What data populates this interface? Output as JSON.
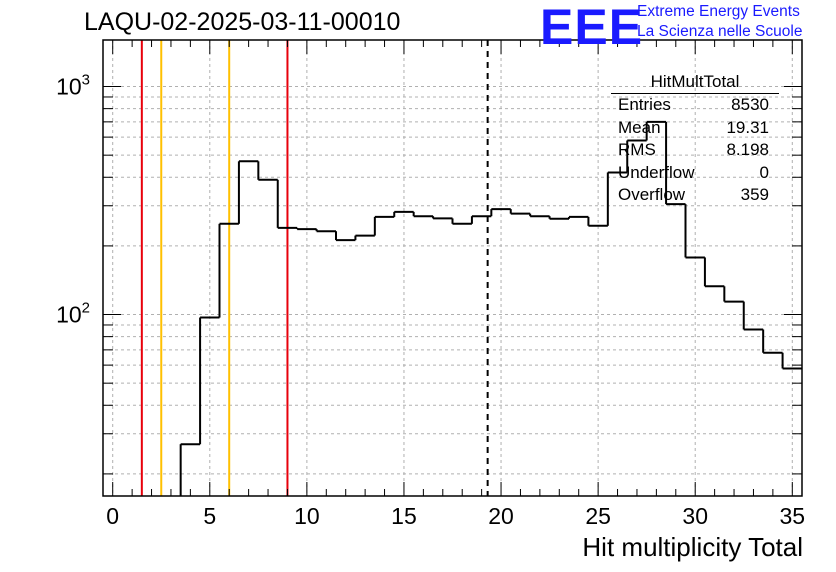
{
  "header": {
    "title": "LAQU-02-2025-03-11-00010",
    "logo": {
      "mark": "EEE",
      "line1": "Extreme Energy Events",
      "line2": "La Scienza nelle Scuole",
      "color": "#1a1aff"
    }
  },
  "stats_box": {
    "title": "HitMultTotal",
    "rows": [
      {
        "label": "Entries",
        "value": "8530"
      },
      {
        "label": "Mean",
        "value": "19.31"
      },
      {
        "label": "RMS",
        "value": "8.198"
      },
      {
        "label": "Underflow",
        "value": "0"
      },
      {
        "label": "Overflow",
        "value": "359"
      }
    ]
  },
  "chart_data": {
    "type": "histogram",
    "xlabel": "Hit multiplicity Total",
    "ylabel": "",
    "xlim": [
      -0.5,
      35.5
    ],
    "ylim": [
      16,
      1600
    ],
    "yscale": "log",
    "grid": true,
    "x_ticks": [
      "0",
      "5",
      "10",
      "15",
      "20",
      "25",
      "30",
      "35"
    ],
    "y_ticks": [
      {
        "base": "10",
        "exp": "2",
        "value": 100
      },
      {
        "base": "10",
        "exp": "3",
        "value": 1000
      }
    ],
    "bin_edges_start": -0.5,
    "bin_width": 1,
    "counts": [
      0,
      0,
      0,
      0,
      27,
      97,
      250,
      470,
      390,
      240,
      237,
      232,
      212,
      222,
      268,
      282,
      270,
      264,
      250,
      270,
      290,
      277,
      270,
      263,
      268,
      245,
      420,
      580,
      700,
      305,
      178,
      133,
      114,
      86,
      68,
      58
    ],
    "vertical_lines": [
      {
        "x": 1.5,
        "color": "#e8000b",
        "style": "solid"
      },
      {
        "x": 2.5,
        "color": "#ffc000",
        "style": "solid"
      },
      {
        "x": 6.0,
        "color": "#ffc000",
        "style": "solid"
      },
      {
        "x": 9.0,
        "color": "#e8000b",
        "style": "solid"
      },
      {
        "x": 19.31,
        "color": "#000000",
        "style": "dashed"
      }
    ]
  }
}
